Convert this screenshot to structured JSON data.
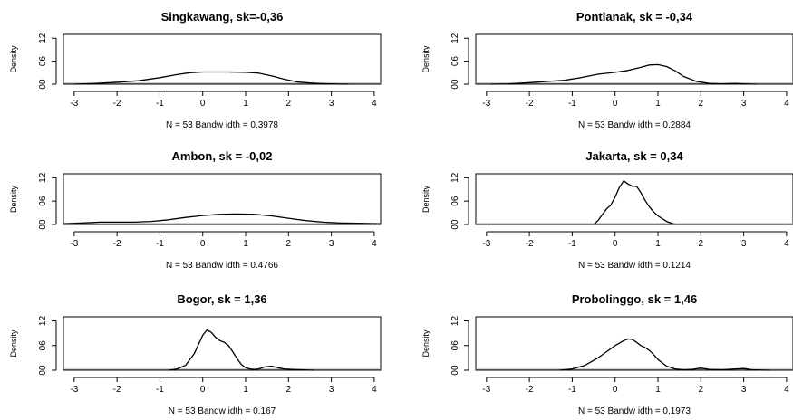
{
  "chart_data": [
    {
      "type": "line",
      "title": "Singkawang, sk=-0,36",
      "ylabel": "Density",
      "xlabel": "N = 53   Bandw idth = 0.3978",
      "xlim": [
        -3.25,
        4.15
      ],
      "ylim": [
        0,
        1.3
      ],
      "x_ticks": [
        -3,
        -2,
        -1,
        0,
        1,
        2,
        3,
        4
      ],
      "y_ticks": [
        "00",
        "06",
        "12"
      ],
      "series": [
        {
          "x": [
            -3.0,
            -2.5,
            -2.0,
            -1.5,
            -1.0,
            -0.6,
            -0.3,
            0.0,
            0.3,
            0.6,
            1.0,
            1.3,
            1.6,
            1.9,
            2.2,
            2.5,
            2.8,
            3.1,
            3.4
          ],
          "y": [
            0.0,
            0.02,
            0.05,
            0.09,
            0.17,
            0.25,
            0.3,
            0.32,
            0.32,
            0.32,
            0.31,
            0.29,
            0.22,
            0.13,
            0.06,
            0.03,
            0.015,
            0.005,
            0.0
          ]
        }
      ]
    },
    {
      "type": "line",
      "title": "Pontianak, sk = -0,34",
      "ylabel": "Density",
      "xlabel": "N = 53   Bandw idth = 0.2884",
      "xlim": [
        -3.25,
        4.15
      ],
      "ylim": [
        0,
        1.3
      ],
      "x_ticks": [
        -3,
        -2,
        -1,
        0,
        1,
        2,
        3,
        4
      ],
      "y_ticks": [
        "00",
        "06",
        "12"
      ],
      "series": [
        {
          "x": [
            -2.9,
            -2.5,
            -2.0,
            -1.6,
            -1.2,
            -0.8,
            -0.4,
            0.0,
            0.3,
            0.6,
            0.8,
            1.0,
            1.2,
            1.4,
            1.6,
            1.9,
            2.2,
            2.5,
            2.8,
            3.0,
            3.3
          ],
          "y": [
            0.0,
            0.01,
            0.04,
            0.07,
            0.1,
            0.17,
            0.26,
            0.31,
            0.36,
            0.44,
            0.5,
            0.51,
            0.46,
            0.35,
            0.2,
            0.07,
            0.02,
            0.01,
            0.02,
            0.01,
            0.0
          ]
        }
      ]
    },
    {
      "type": "line",
      "title": "Ambon, sk = -0,02",
      "ylabel": "Density",
      "xlabel": "N = 53   Bandw idth = 0.4766",
      "xlim": [
        -3.25,
        4.15
      ],
      "ylim": [
        0,
        1.3
      ],
      "x_ticks": [
        -3,
        -2,
        -1,
        0,
        1,
        2,
        3,
        4
      ],
      "y_ticks": [
        "00",
        "06",
        "12"
      ],
      "series": [
        {
          "x": [
            -3.25,
            -2.8,
            -2.4,
            -2.0,
            -1.6,
            -1.2,
            -0.8,
            -0.4,
            0.0,
            0.4,
            0.8,
            1.2,
            1.6,
            2.0,
            2.4,
            2.8,
            3.2,
            3.6,
            4.15
          ],
          "y": [
            0.02,
            0.04,
            0.06,
            0.06,
            0.06,
            0.08,
            0.12,
            0.18,
            0.23,
            0.26,
            0.27,
            0.26,
            0.22,
            0.16,
            0.1,
            0.06,
            0.04,
            0.03,
            0.02
          ]
        }
      ]
    },
    {
      "type": "line",
      "title": "Jakarta, sk =  0,34",
      "ylabel": "Density",
      "xlabel": "N = 53   Bandw idth = 0.1214",
      "xlim": [
        -3.25,
        4.15
      ],
      "ylim": [
        0,
        1.3
      ],
      "x_ticks": [
        -3,
        -2,
        -1,
        0,
        1,
        2,
        3,
        4
      ],
      "y_ticks": [
        "00",
        "06",
        "12"
      ],
      "series": [
        {
          "x": [
            -0.5,
            -0.4,
            -0.3,
            -0.2,
            -0.1,
            0.0,
            0.1,
            0.2,
            0.3,
            0.4,
            0.5,
            0.6,
            0.7,
            0.8,
            0.9,
            1.0,
            1.2,
            1.4
          ],
          "y": [
            0.0,
            0.1,
            0.25,
            0.4,
            0.5,
            0.7,
            0.95,
            1.12,
            1.04,
            0.98,
            0.98,
            0.82,
            0.62,
            0.45,
            0.32,
            0.22,
            0.08,
            0.0
          ]
        }
      ]
    },
    {
      "type": "line",
      "title": "Bogor, sk = 1,36",
      "ylabel": "Density",
      "xlabel": "N = 53   Bandw idth = 0.167",
      "xlim": [
        -3.25,
        4.15
      ],
      "ylim": [
        0,
        1.3
      ],
      "x_ticks": [
        -3,
        -2,
        -1,
        0,
        1,
        2,
        3,
        4
      ],
      "y_ticks": [
        "00",
        "06",
        "12"
      ],
      "series": [
        {
          "x": [
            -0.8,
            -0.6,
            -0.4,
            -0.2,
            0.0,
            0.1,
            0.2,
            0.3,
            0.4,
            0.5,
            0.6,
            0.7,
            0.8,
            0.9,
            1.0,
            1.1,
            1.2,
            1.3,
            1.45,
            1.6,
            1.75,
            1.9,
            2.1,
            2.3,
            2.6
          ],
          "y": [
            0.0,
            0.03,
            0.12,
            0.4,
            0.85,
            0.98,
            0.92,
            0.8,
            0.72,
            0.68,
            0.6,
            0.45,
            0.28,
            0.14,
            0.06,
            0.03,
            0.02,
            0.03,
            0.08,
            0.1,
            0.06,
            0.03,
            0.02,
            0.01,
            0.0
          ]
        }
      ]
    },
    {
      "type": "line",
      "title": "Probolinggo, sk = 1,46",
      "ylabel": "Density",
      "xlabel": "N = 53   Bandw idth = 0.1973",
      "xlim": [
        -3.25,
        4.15
      ],
      "ylim": [
        0,
        1.3
      ],
      "x_ticks": [
        -3,
        -2,
        -1,
        0,
        1,
        2,
        3,
        4
      ],
      "y_ticks": [
        "00",
        "06",
        "12"
      ],
      "series": [
        {
          "x": [
            -1.3,
            -1.0,
            -0.7,
            -0.4,
            -0.2,
            0.0,
            0.2,
            0.3,
            0.4,
            0.5,
            0.6,
            0.7,
            0.8,
            0.9,
            1.0,
            1.2,
            1.4,
            1.6,
            1.8,
            2.0,
            2.2,
            2.5,
            2.8,
            3.0,
            3.2,
            3.6
          ],
          "y": [
            0.0,
            0.03,
            0.12,
            0.3,
            0.45,
            0.6,
            0.72,
            0.76,
            0.75,
            0.68,
            0.6,
            0.55,
            0.48,
            0.38,
            0.26,
            0.1,
            0.03,
            0.01,
            0.02,
            0.05,
            0.02,
            0.01,
            0.03,
            0.04,
            0.01,
            0.0
          ]
        }
      ]
    }
  ]
}
